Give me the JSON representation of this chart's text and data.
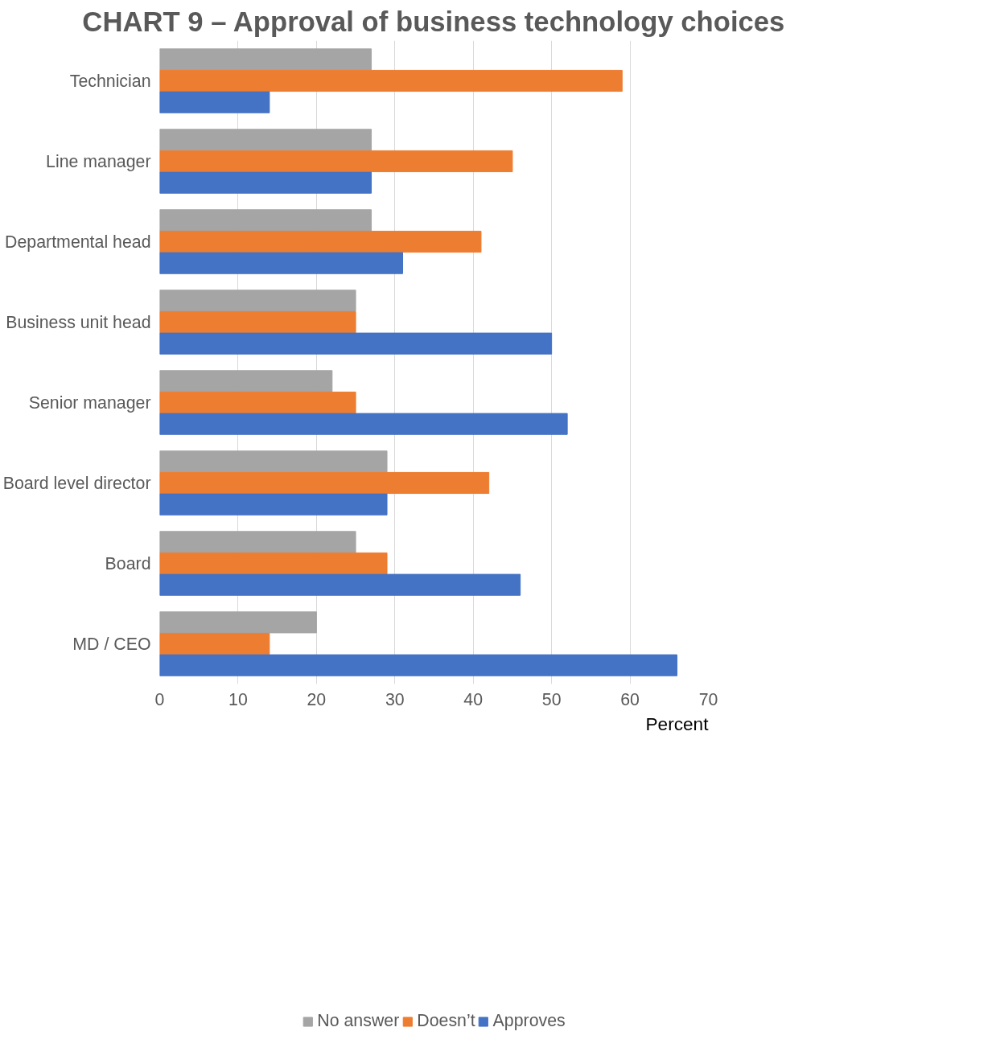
{
  "chart_data": {
    "type": "bar",
    "orientation": "horizontal",
    "title": "CHART 9 – Approval of business technology choices",
    "xlabel": "Percent",
    "categories": [
      "Technician",
      "Line manager",
      "Departmental head",
      "Business unit head",
      "Senior manager",
      "Board level director",
      "Board",
      "MD / CEO"
    ],
    "series": [
      {
        "name": "No answer",
        "color": "#a5a5a5",
        "values": [
          27,
          27,
          27,
          25,
          22,
          29,
          25,
          20
        ]
      },
      {
        "name": "Doesn’t",
        "color": "#ed7d31",
        "values": [
          59,
          45,
          41,
          25,
          25,
          42,
          29,
          14
        ]
      },
      {
        "name": "Approves",
        "color": "#4472c4",
        "values": [
          14,
          27,
          31,
          50,
          52,
          29,
          46,
          66
        ]
      }
    ],
    "xlim": [
      0,
      70
    ],
    "xticks": [
      0,
      10,
      20,
      30,
      40,
      50,
      60,
      70
    ],
    "grid": "x",
    "legend": "bottom"
  }
}
